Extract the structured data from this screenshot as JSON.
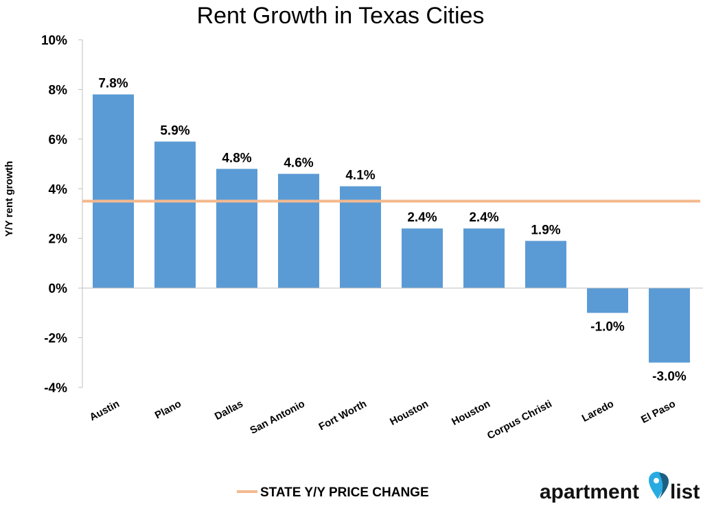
{
  "chart_data": {
    "type": "bar",
    "title": "Rent Growth in Texas Cities",
    "ylabel": "Y/Y rent growth",
    "xlabel": "",
    "ylim": [
      -4,
      10
    ],
    "yticks": [
      -4,
      -2,
      0,
      2,
      4,
      6,
      8,
      10
    ],
    "ytick_labels": [
      "-4%",
      "-2%",
      "0%",
      "2%",
      "4%",
      "6%",
      "8%",
      "10%"
    ],
    "categories": [
      "Austin",
      "Plano",
      "Dallas",
      "San Antonio",
      "Fort Worth",
      "Houston",
      "Houston",
      "Corpus Christi",
      "Laredo",
      "El Paso"
    ],
    "values": [
      7.8,
      5.9,
      4.8,
      4.6,
      4.1,
      2.4,
      2.4,
      1.9,
      -1.0,
      -3.0
    ],
    "data_labels": [
      "7.8%",
      "5.9%",
      "4.8%",
      "4.6%",
      "4.1%",
      "2.4%",
      "2.4%",
      "1.9%",
      "-1.0%",
      "-3.0%"
    ],
    "reference_line": {
      "name": "STATE Y/Y PRICE CHANGE",
      "value": 3.5,
      "color": "#f4b98e"
    },
    "bar_color": "#5b9bd5",
    "grid": false,
    "legend": "bottom"
  },
  "brand": {
    "logo_text_1": "apartment",
    "logo_text_2": "list"
  }
}
